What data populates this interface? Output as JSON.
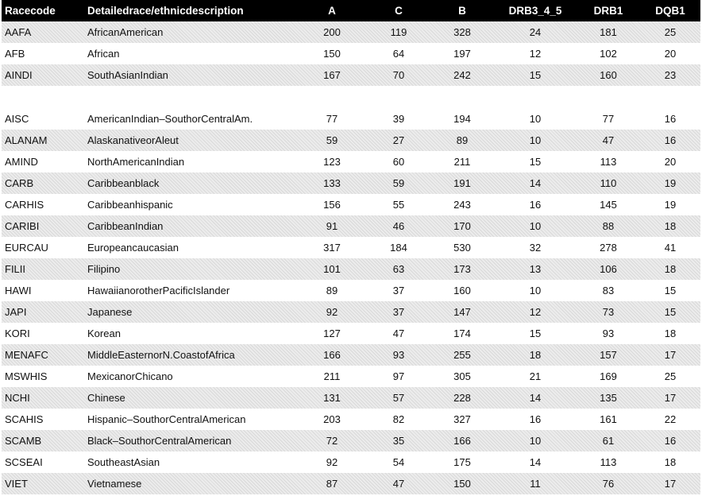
{
  "table": {
    "headers": {
      "racecode": "Racecode",
      "description": "Detailedrace/ethnicdescription",
      "a": "A",
      "c": "C",
      "b": "B",
      "drb3_4_5": "DRB3_4_5",
      "drb1": "DRB1",
      "dqb1": "DQB1"
    },
    "rows": [
      {
        "code": "AAFA",
        "desc": "AfricanAmerican",
        "a": "200",
        "c": "119",
        "b": "328",
        "drb3_4_5": "24",
        "drb1": "181",
        "dqb1": "25"
      },
      {
        "code": "AFB",
        "desc": "African",
        "a": "150",
        "c": "64",
        "b": "197",
        "drb3_4_5": "12",
        "drb1": "102",
        "dqb1": "20"
      },
      {
        "code": "AINDI",
        "desc": "SouthAsianIndian",
        "a": "167",
        "c": "70",
        "b": "242",
        "drb3_4_5": "15",
        "drb1": "160",
        "dqb1": "23"
      },
      {
        "code": "AISC",
        "desc": "AmericanIndian–SouthorCentralAm.",
        "a": "77",
        "c": "39",
        "b": "194",
        "drb3_4_5": "10",
        "drb1": "77",
        "dqb1": "16"
      },
      {
        "code": "ALANAM",
        "desc": "AlaskanativeorAleut",
        "a": "59",
        "c": "27",
        "b": "89",
        "drb3_4_5": "10",
        "drb1": "47",
        "dqb1": "16"
      },
      {
        "code": "AMIND",
        "desc": "NorthAmericanIndian",
        "a": "123",
        "c": "60",
        "b": "211",
        "drb3_4_5": "15",
        "drb1": "113",
        "dqb1": "20"
      },
      {
        "code": "CARB",
        "desc": "Caribbeanblack",
        "a": "133",
        "c": "59",
        "b": "191",
        "drb3_4_5": "14",
        "drb1": "110",
        "dqb1": "19"
      },
      {
        "code": "CARHIS",
        "desc": "Caribbeanhispanic",
        "a": "156",
        "c": "55",
        "b": "243",
        "drb3_4_5": "16",
        "drb1": "145",
        "dqb1": "19"
      },
      {
        "code": "CARIBI",
        "desc": "CaribbeanIndian",
        "a": "91",
        "c": "46",
        "b": "170",
        "drb3_4_5": "10",
        "drb1": "88",
        "dqb1": "18"
      },
      {
        "code": "EURCAU",
        "desc": "Europeancaucasian",
        "a": "317",
        "c": "184",
        "b": "530",
        "drb3_4_5": "32",
        "drb1": "278",
        "dqb1": "41"
      },
      {
        "code": "FILII",
        "desc": "Filipino",
        "a": "101",
        "c": "63",
        "b": "173",
        "drb3_4_5": "13",
        "drb1": "106",
        "dqb1": "18"
      },
      {
        "code": "HAWI",
        "desc": "HawaiianorotherPacificIslander",
        "a": "89",
        "c": "37",
        "b": "160",
        "drb3_4_5": "10",
        "drb1": "83",
        "dqb1": "15"
      },
      {
        "code": "JAPI",
        "desc": "Japanese",
        "a": "92",
        "c": "37",
        "b": "147",
        "drb3_4_5": "12",
        "drb1": "73",
        "dqb1": "15"
      },
      {
        "code": "KORI",
        "desc": "Korean",
        "a": "127",
        "c": "47",
        "b": "174",
        "drb3_4_5": "15",
        "drb1": "93",
        "dqb1": "18"
      },
      {
        "code": "MENAFC",
        "desc": "MiddleEasternorN.CoastofAfrica",
        "a": "166",
        "c": "93",
        "b": "255",
        "drb3_4_5": "18",
        "drb1": "157",
        "dqb1": "17"
      },
      {
        "code": "MSWHIS",
        "desc": "MexicanorChicano",
        "a": "211",
        "c": "97",
        "b": "305",
        "drb3_4_5": "21",
        "drb1": "169",
        "dqb1": "25"
      },
      {
        "code": "NCHI",
        "desc": "Chinese",
        "a": "131",
        "c": "57",
        "b": "228",
        "drb3_4_5": "14",
        "drb1": "135",
        "dqb1": "17"
      },
      {
        "code": "SCAHIS",
        "desc": "Hispanic–SouthorCentralAmerican",
        "a": "203",
        "c": "82",
        "b": "327",
        "drb3_4_5": "16",
        "drb1": "161",
        "dqb1": "22"
      },
      {
        "code": "SCAMB",
        "desc": "Black–SouthorCentralAmerican",
        "a": "72",
        "c": "35",
        "b": "166",
        "drb3_4_5": "10",
        "drb1": "61",
        "dqb1": "16"
      },
      {
        "code": "SCSEAI",
        "desc": "SoutheastAsian",
        "a": "92",
        "c": "54",
        "b": "175",
        "drb3_4_5": "14",
        "drb1": "113",
        "dqb1": "18"
      },
      {
        "code": "VIET",
        "desc": "Vietnamese",
        "a": "87",
        "c": "47",
        "b": "150",
        "drb3_4_5": "11",
        "drb1": "76",
        "dqb1": "17"
      }
    ]
  },
  "colors": {
    "header_bg": "#000000",
    "header_text": "#ffffff",
    "band_bg": "#e6e6e6",
    "text": "#111111"
  }
}
